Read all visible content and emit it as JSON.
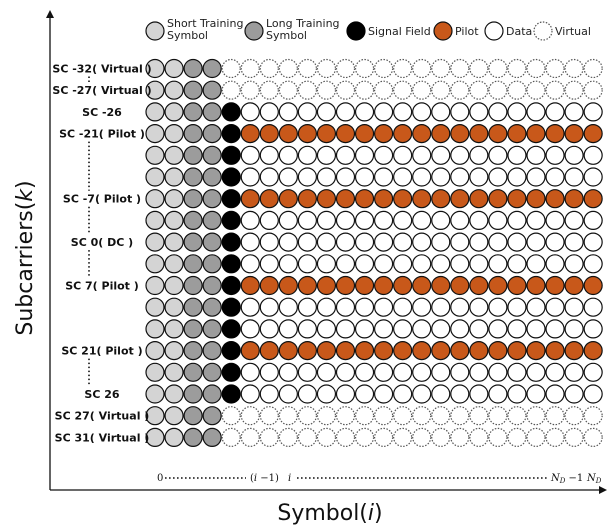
{
  "axes": {
    "y_title": "Subcarriers(k)",
    "y_title_main": "Subcarriers(",
    "y_title_var": "k",
    "y_title_close": ")",
    "x_title_main": "Symbol(",
    "x_title_var": "i",
    "x_title_close": ")"
  },
  "legend": [
    {
      "label_lines": [
        "Short Training",
        "Symbol"
      ],
      "fill": "#d4d4d4",
      "stroke": "#111111",
      "dashed": false
    },
    {
      "label_lines": [
        "Long Training",
        "Symbol"
      ],
      "fill": "#9c9c9c",
      "stroke": "#111111",
      "dashed": false
    },
    {
      "label_lines": [
        "Signal Field"
      ],
      "fill": "#000000",
      "stroke": "#000000",
      "dashed": false
    },
    {
      "label_lines": [
        "Pilot"
      ],
      "fill": "#c8581a",
      "stroke": "#111111",
      "dashed": false
    },
    {
      "label_lines": [
        "Data"
      ],
      "fill": "#ffffff",
      "stroke": "#111111",
      "dashed": false
    },
    {
      "label_lines": [
        "Virtual"
      ],
      "fill": "#ffffff",
      "stroke": "#555555",
      "dashed": true
    }
  ],
  "colors": {
    "short_training": "#d4d4d4",
    "long_training": "#9c9c9c",
    "signal": "#000000",
    "pilot": "#c8581a",
    "data": "#ffffff",
    "virtual_stroke": "#555555",
    "axis": "#111111"
  },
  "grid": {
    "training_columns": 4,
    "signal_columns": 1,
    "payload_columns": 19,
    "rows": [
      "virtual",
      "virtual",
      "data",
      "pilot",
      "data",
      "data",
      "pilot",
      "data",
      "data",
      "data",
      "pilot",
      "data",
      "data",
      "pilot",
      "data",
      "data",
      "virtual",
      "virtual"
    ]
  },
  "row_labels": [
    {
      "row": 0,
      "text": "SC -32( Virtual )"
    },
    {
      "row": 1,
      "text": "SC -27( Virtual )"
    },
    {
      "row": 2,
      "text": "SC -26"
    },
    {
      "row": 3,
      "text": "SC -21( Pilot )"
    },
    {
      "row": 6,
      "text": "SC -7( Pilot )"
    },
    {
      "row": 8,
      "text": "SC 0( DC )"
    },
    {
      "row": 10,
      "text": "SC 7( Pilot )"
    },
    {
      "row": 13,
      "text": "SC 21( Pilot )"
    },
    {
      "row": 15,
      "text": "SC 26"
    },
    {
      "row": 16,
      "text": "SC 27( Virtual )"
    },
    {
      "row": 17,
      "text": "SC 31( Virtual )"
    }
  ],
  "row_gaps": [
    {
      "from_row": 0,
      "to_row": 1
    },
    {
      "from_row": 3,
      "to_row": 6
    },
    {
      "from_row": 6,
      "to_row": 8
    },
    {
      "from_row": 8,
      "to_row": 10
    },
    {
      "from_row": 13,
      "to_row": 15
    }
  ],
  "x_ticks": {
    "start": "0",
    "prev_open": "(",
    "prev_var": "i",
    "prev_rest": " −1)",
    "cur": "i",
    "nd_minus_one_var": "N",
    "nd_minus_one_sub": "D",
    "nd_minus_one_rest": " −1",
    "nd_var": "N",
    "nd_sub": "D"
  }
}
